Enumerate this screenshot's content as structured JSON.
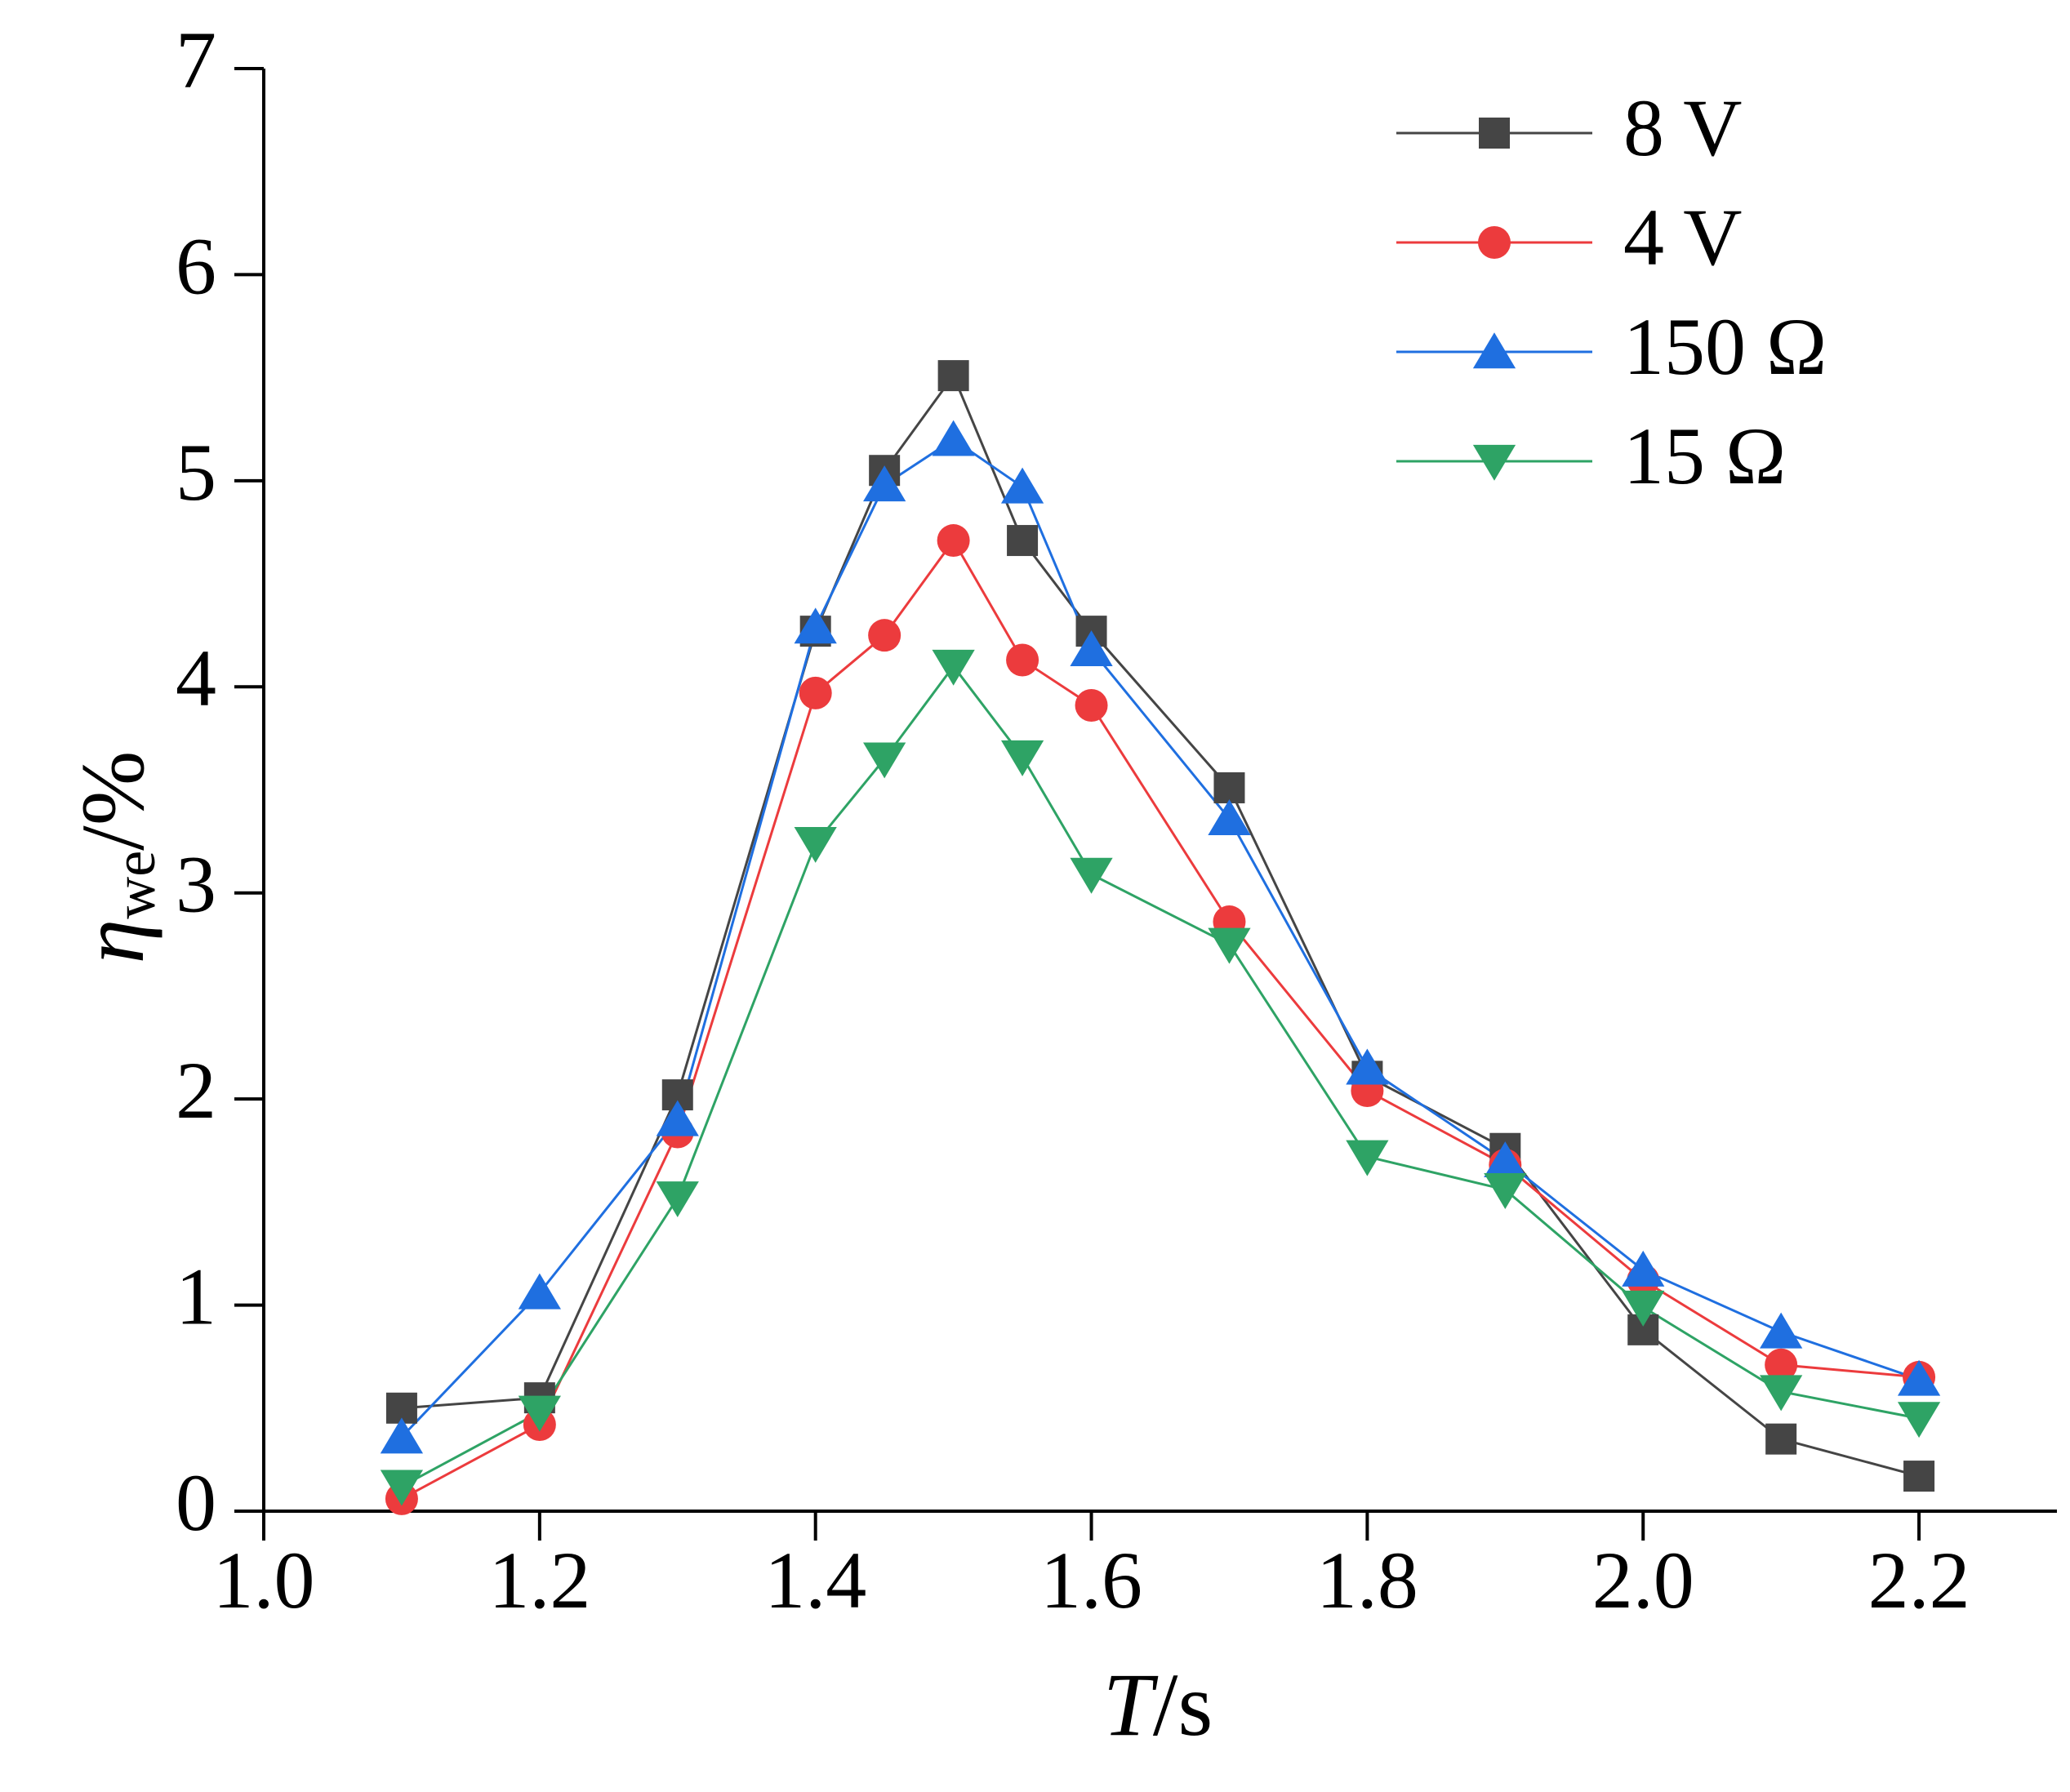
{
  "chart_data": {
    "type": "line",
    "ylabel": {
      "symbol": "η",
      "subscript": "we",
      "unit": "/%"
    },
    "xlabel": {
      "symbol": "T",
      "unit": "/s"
    },
    "x": [
      1.1,
      1.2,
      1.3,
      1.4,
      1.45,
      1.5,
      1.55,
      1.6,
      1.7,
      1.8,
      1.9,
      2.0,
      2.1,
      2.2
    ],
    "series": [
      {
        "name": "8 V",
        "color": "#454545",
        "marker": "square",
        "values": [
          0.5,
          0.55,
          2.02,
          4.27,
          5.05,
          5.51,
          4.71,
          4.27,
          3.51,
          2.11,
          1.76,
          0.88,
          0.35,
          0.17
        ]
      },
      {
        "name": "4 V",
        "color": "#ec3b3d",
        "marker": "circle",
        "values": [
          0.06,
          0.42,
          1.84,
          3.97,
          4.25,
          4.71,
          4.13,
          3.91,
          2.86,
          2.04,
          1.68,
          1.12,
          0.71,
          0.65
        ]
      },
      {
        "name": "150 Ω",
        "color": "#1f6fe0",
        "marker": "triangle-up",
        "values": [
          0.36,
          1.06,
          1.9,
          4.29,
          4.98,
          5.2,
          4.97,
          4.18,
          3.36,
          2.15,
          1.7,
          1.17,
          0.87,
          0.64
        ]
      },
      {
        "name": "15 Ω",
        "color": "#2ea365",
        "marker": "triangle-down",
        "values": [
          0.12,
          0.48,
          1.52,
          3.24,
          3.65,
          4.1,
          3.66,
          3.09,
          2.75,
          1.72,
          1.56,
          0.99,
          0.58,
          0.45
        ]
      }
    ],
    "xlim": [
      1.0,
      2.3
    ],
    "xticks": [
      {
        "value": 1.0,
        "label": "1.0"
      },
      1.2,
      1.4,
      1.6,
      1.8,
      {
        "value": 2.0,
        "label": "2.0"
      },
      2.2
    ],
    "ylim": [
      0,
      7
    ],
    "yticks": [
      0,
      1,
      2,
      3,
      4,
      5,
      6,
      7
    ],
    "grid": false,
    "legend": "top-right"
  }
}
